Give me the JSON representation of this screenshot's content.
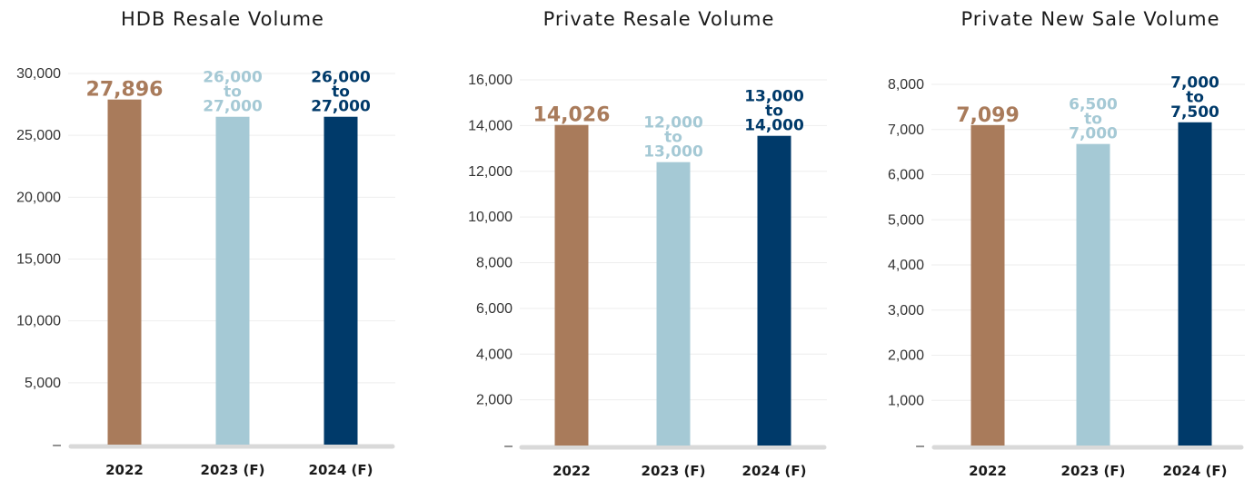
{
  "chart_data": [
    {
      "type": "bar",
      "title": "HDB Resale Volume",
      "categories": [
        "2022",
        "2023 (F)",
        "2024 (F)"
      ],
      "values": [
        27896,
        26500,
        26500
      ],
      "data_labels": [
        [
          "27,896"
        ],
        [
          "26,000",
          "to",
          "27,000"
        ],
        [
          "26,000",
          "to",
          "27,000"
        ]
      ],
      "colors": [
        "#a97b5b",
        "#a5c9d5",
        "#003a6a"
      ],
      "yticks": [
        "–",
        "5,000",
        "10,000",
        "15,000",
        "20,000",
        "25,000",
        "30,000"
      ],
      "ylim": [
        0,
        30000
      ],
      "grid": true
    },
    {
      "type": "bar",
      "title": "Private Resale Volume",
      "categories": [
        "2022",
        "2023 (F)",
        "2024 (F)"
      ],
      "values": [
        14026,
        12400,
        13550
      ],
      "data_labels": [
        [
          "14,026"
        ],
        [
          "12,000",
          "to",
          "13,000"
        ],
        [
          "13,000",
          "to",
          "14,000"
        ]
      ],
      "colors": [
        "#a97b5b",
        "#a5c9d5",
        "#003a6a"
      ],
      "yticks": [
        "–",
        "2,000",
        "4,000",
        "6,000",
        "8,000",
        "10,000",
        "12,000",
        "14,000",
        "16,000"
      ],
      "ylim": [
        0,
        16000
      ],
      "grid": true
    },
    {
      "type": "bar",
      "title": "Private New Sale Volume",
      "categories": [
        "2022",
        "2023 (F)",
        "2024 (F)"
      ],
      "values": [
        7099,
        6680,
        7160
      ],
      "data_labels": [
        [
          "7,099"
        ],
        [
          "6,500",
          "to",
          "7,000"
        ],
        [
          "7,000",
          "to",
          "7,500"
        ]
      ],
      "colors": [
        "#a97b5b",
        "#a5c9d5",
        "#003a6a"
      ],
      "yticks": [
        "–",
        "1,000",
        "2,000",
        "3,000",
        "4,000",
        "5,000",
        "6,000",
        "7,000",
        "8,000"
      ],
      "ylim": [
        0,
        8000
      ],
      "grid": true
    }
  ]
}
